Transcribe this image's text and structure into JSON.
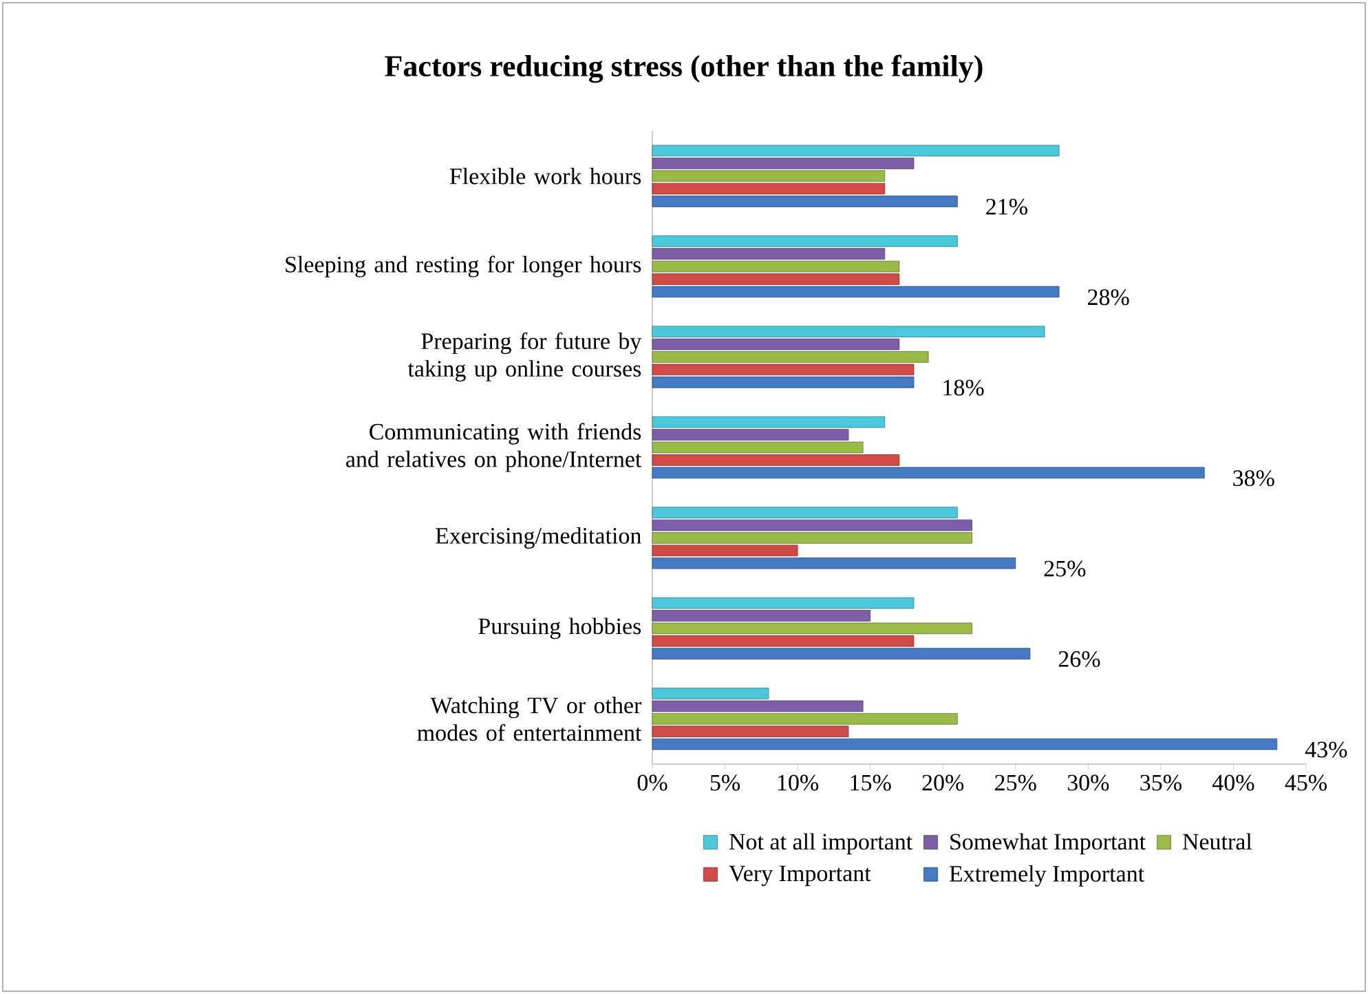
{
  "chart_data": {
    "type": "bar",
    "orientation": "horizontal",
    "title": "Factors reducing stress (other than the family)",
    "categories": [
      "Flexible work hours",
      "Sleeping and resting for longer hours",
      "Preparing for future by taking up online courses",
      "Communicating with friends and relatives on phone/Internet",
      "Exercising/meditation",
      "Pursuing hobbies",
      "Watching TV or other modes of entertainment"
    ],
    "series": [
      {
        "name": "Not at all important",
        "color": "#4bc8dc",
        "values": [
          28,
          21,
          27,
          16,
          21,
          18,
          8
        ]
      },
      {
        "name": "Somewhat Important",
        "color": "#7e5ea8",
        "values": [
          18,
          16,
          17,
          13.5,
          22,
          15,
          14.5
        ]
      },
      {
        "name": "Neutral",
        "color": "#9bbb48",
        "values": [
          16,
          17,
          19,
          14.5,
          22,
          22,
          21
        ]
      },
      {
        "name": "Very Important",
        "color": "#d04a46",
        "values": [
          16,
          17,
          18,
          17,
          10,
          18,
          13.5
        ]
      },
      {
        "name": "Extremely Important",
        "color": "#4479c4",
        "values": [
          21,
          28,
          18,
          38,
          25,
          26,
          43
        ],
        "value_labels": [
          "21%",
          "28%",
          "18%",
          "38%",
          "25%",
          "26%",
          "43%"
        ]
      }
    ],
    "xlim": [
      0,
      45
    ],
    "xticks": [
      {
        "value": 0,
        "label": "0%"
      },
      {
        "value": 5,
        "label": "5%"
      },
      {
        "value": 10,
        "label": "10%"
      },
      {
        "value": 15,
        "label": "15%"
      },
      {
        "value": 20,
        "label": "20%"
      },
      {
        "value": 25,
        "label": "25%"
      },
      {
        "value": 30,
        "label": "30%"
      },
      {
        "value": 35,
        "label": "35%"
      },
      {
        "value": 40,
        "label": "40%"
      },
      {
        "value": 45,
        "label": "45%"
      }
    ],
    "grid": false,
    "legend": "bottom"
  }
}
